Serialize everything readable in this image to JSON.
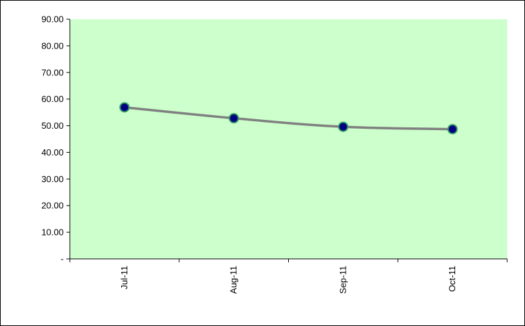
{
  "chart_data": {
    "type": "line",
    "title": "",
    "xlabel": "",
    "ylabel": "",
    "categories": [
      "Jul-11",
      "Aug-11",
      "Sep-11",
      "Oct-11"
    ],
    "series": [
      {
        "values": [
          56.9,
          52.8,
          49.6,
          48.7
        ]
      }
    ],
    "ylim": [
      0,
      90
    ],
    "yticks": [
      0,
      10,
      20,
      30,
      40,
      50,
      60,
      70,
      80,
      90
    ],
    "ytick_labels": [
      "-",
      "10.00",
      "20.00",
      "30.00",
      "40.00",
      "50.00",
      "60.00",
      "70.00",
      "80.00",
      "90.00"
    ],
    "grid": false,
    "legend": "none",
    "colors": {
      "plot_background": "#ccffcc",
      "line": "#808080",
      "marker_fill": "#000080",
      "marker_stroke": "#339966"
    }
  }
}
